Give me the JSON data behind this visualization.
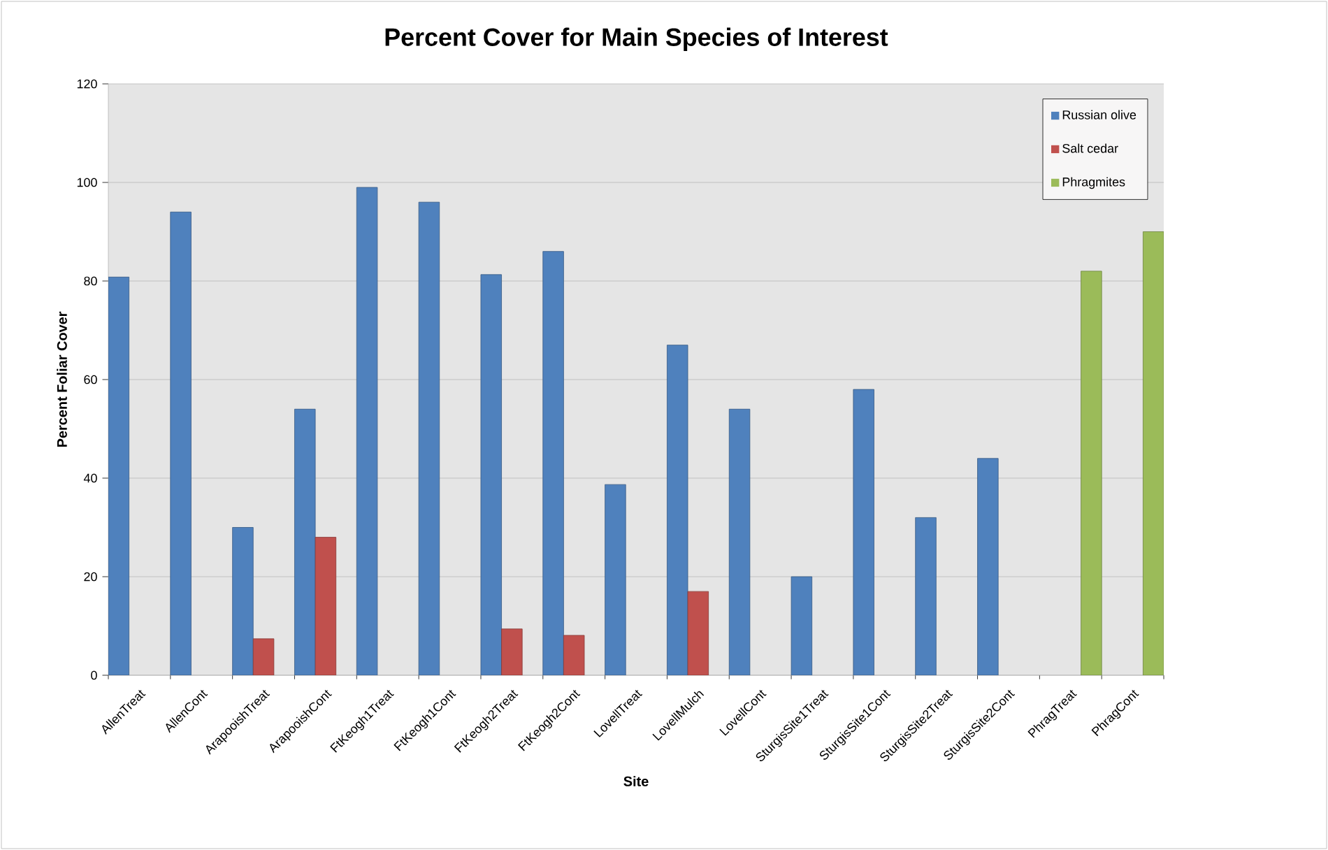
{
  "chart_data": {
    "type": "bar",
    "title": "Percent Cover for Main Species of Interest",
    "xlabel": "Site",
    "ylabel": "Percent Foliar Cover",
    "categories": [
      "AllenTreat",
      "AllenCont",
      "ArapooishTreat",
      "ArapooishCont",
      "FtKeogh1Treat",
      "FtKeogh1Cont",
      "FtKeogh2Treat",
      "FtKeogh2Cont",
      "LovellTreat",
      "LovellMulch",
      "LovellCont",
      "SturgisSite1Treat",
      "SturgisSite1Cont",
      "SturgisSite2Treat",
      "SturgisSite2Cont",
      "PhragTreat",
      "PhragCont"
    ],
    "series": [
      {
        "name": "Russian olive",
        "color": "#4f81bd",
        "values": [
          80.8,
          94,
          30,
          54,
          99,
          96,
          81.3,
          86,
          38.7,
          67,
          54,
          20,
          58,
          32,
          44,
          null,
          null
        ]
      },
      {
        "name": "Salt cedar",
        "color": "#c0504d",
        "values": [
          null,
          null,
          7.4,
          28,
          null,
          null,
          9.4,
          8.1,
          null,
          17,
          null,
          null,
          null,
          null,
          null,
          null,
          null
        ]
      },
      {
        "name": "Phragmites",
        "color": "#9bbb59",
        "values": [
          null,
          null,
          null,
          null,
          null,
          null,
          null,
          null,
          null,
          null,
          null,
          null,
          null,
          null,
          null,
          82,
          90
        ]
      }
    ],
    "ylim": [
      0,
      120
    ],
    "yticks": [
      0,
      20,
      40,
      60,
      80,
      100,
      120
    ],
    "grid": "y",
    "legend": "top right"
  }
}
